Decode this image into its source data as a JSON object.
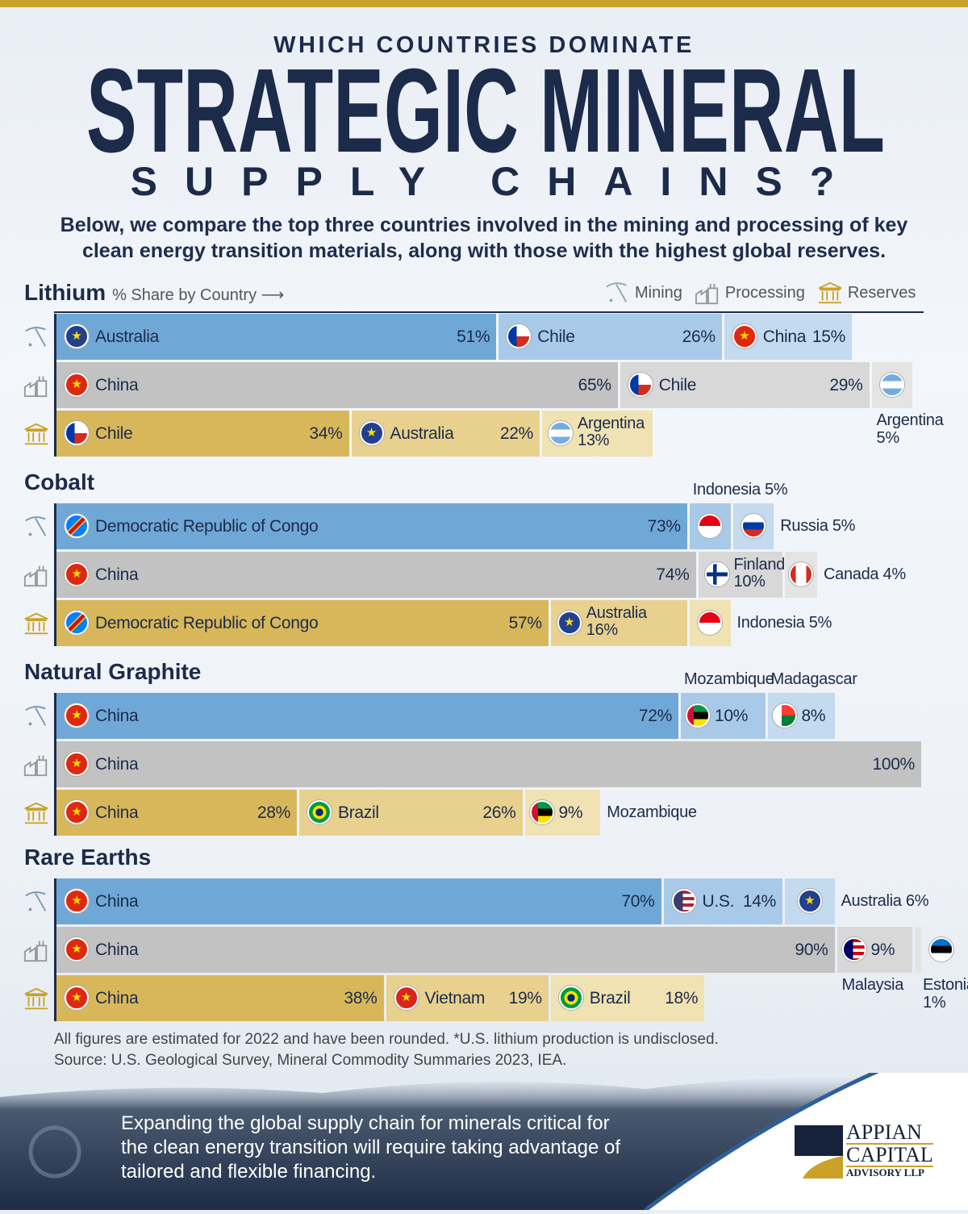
{
  "header": {
    "kicker": "WHICH COUNTRIES DOMINATE",
    "title": "STRATEGIC MINERAL",
    "title2": "SUPPLY CHAINS?",
    "intro": "Below, we compare the top three countries involved in the mining and processing of key clean energy transition materials, along with those with the highest global reserves."
  },
  "legend": {
    "subtitle": "% Share by Country",
    "mining": "Mining",
    "processing": "Processing",
    "reserves": "Reserves"
  },
  "colors": {
    "mining": [
      "#6fa8d7",
      "#a8cae8",
      "#c3daef"
    ],
    "processing": [
      "#c2c2c2",
      "#d8d8d8",
      "#e4e4e4"
    ],
    "reserves": [
      "#d8b75b",
      "#e8d18f",
      "#f0e2b2"
    ],
    "navy": "#1c2b4a",
    "gold": "#c9a227"
  },
  "chart_data": {
    "type": "bar",
    "orientation": "horizontal-stacked",
    "unit": "%",
    "xlim": [
      0,
      100
    ],
    "minerals": [
      {
        "name": "Lithium",
        "rows": [
          {
            "stage": "mining",
            "segments": [
              {
                "country": "Australia",
                "value": 51,
                "label": "51%",
                "mode": "full"
              },
              {
                "country": "Chile",
                "value": 26,
                "label": "26%",
                "mode": "full"
              },
              {
                "country": "China",
                "value": 15,
                "label": "15%",
                "mode": "full"
              }
            ]
          },
          {
            "stage": "processing",
            "segments": [
              {
                "country": "China",
                "value": 65,
                "label": "65%",
                "mode": "full"
              },
              {
                "country": "Chile",
                "value": 29,
                "label": "29%",
                "mode": "full"
              },
              {
                "country": "Argentina",
                "value": 5,
                "label": "5%",
                "mode": "flag",
                "external": "below"
              }
            ]
          },
          {
            "stage": "reserves",
            "segments": [
              {
                "country": "Chile",
                "value": 34,
                "label": "34%",
                "mode": "full"
              },
              {
                "country": "Australia",
                "value": 22,
                "label": "22%",
                "mode": "full"
              },
              {
                "country": "Argentina",
                "value": 13,
                "label": "13%",
                "mode": "stack"
              }
            ]
          }
        ]
      },
      {
        "name": "Cobalt",
        "rows": [
          {
            "stage": "mining",
            "segments": [
              {
                "country": "Democratic Republic of Congo",
                "value": 73,
                "label": "73%",
                "mode": "full"
              },
              {
                "country": "Indonesia",
                "value": 5,
                "label": "5%",
                "mode": "flag",
                "external": "above"
              },
              {
                "country": "Russia",
                "value": 5,
                "label": "5%",
                "mode": "flag",
                "external": "right"
              }
            ]
          },
          {
            "stage": "processing",
            "segments": [
              {
                "country": "China",
                "value": 74,
                "label": "74%",
                "mode": "full"
              },
              {
                "country": "Finland",
                "value": 10,
                "label": "10%",
                "mode": "stack"
              },
              {
                "country": "Canada",
                "value": 4,
                "label": "4%",
                "mode": "flag",
                "external": "right"
              }
            ]
          },
          {
            "stage": "reserves",
            "segments": [
              {
                "country": "Democratic Republic of Congo",
                "value": 57,
                "label": "57%",
                "mode": "full"
              },
              {
                "country": "Australia",
                "value": 16,
                "label": "16%",
                "mode": "stack"
              },
              {
                "country": "Indonesia",
                "value": 5,
                "label": "5%",
                "mode": "flag",
                "external": "right"
              }
            ]
          }
        ]
      },
      {
        "name": "Natural Graphite",
        "rows": [
          {
            "stage": "mining",
            "segments": [
              {
                "country": "China",
                "value": 72,
                "label": "72%",
                "mode": "full"
              },
              {
                "country": "Mozambique",
                "value": 10,
                "label": "10%",
                "mode": "flagpct",
                "external": "above"
              },
              {
                "country": "Madagascar",
                "value": 8,
                "label": "8%",
                "mode": "flagpct",
                "external": "above"
              }
            ]
          },
          {
            "stage": "processing",
            "segments": [
              {
                "country": "China",
                "value": 100,
                "label": "100%",
                "mode": "full"
              }
            ]
          },
          {
            "stage": "reserves",
            "segments": [
              {
                "country": "China",
                "value": 28,
                "label": "28%",
                "mode": "full"
              },
              {
                "country": "Brazil",
                "value": 26,
                "label": "26%",
                "mode": "full"
              },
              {
                "country": "Mozambique",
                "value": 9,
                "label": "9%",
                "mode": "flagpct",
                "external": "right"
              }
            ]
          }
        ]
      },
      {
        "name": "Rare Earths",
        "rows": [
          {
            "stage": "mining",
            "segments": [
              {
                "country": "China",
                "value": 70,
                "label": "70%",
                "mode": "full"
              },
              {
                "country": "U.S.",
                "value": 14,
                "label": "14%",
                "mode": "full"
              },
              {
                "country": "Australia",
                "value": 6,
                "label": "6%",
                "mode": "flag",
                "external": "right"
              }
            ]
          },
          {
            "stage": "processing",
            "segments": [
              {
                "country": "China",
                "value": 90,
                "label": "90%",
                "mode": "full"
              },
              {
                "country": "Malaysia",
                "value": 9,
                "label": "9%",
                "mode": "flagpct",
                "external": "below"
              },
              {
                "country": "Estonia",
                "value": 1,
                "label": "1%",
                "mode": "flag",
                "external": "below"
              }
            ]
          },
          {
            "stage": "reserves",
            "segments": [
              {
                "country": "China",
                "value": 38,
                "label": "38%",
                "mode": "full"
              },
              {
                "country": "Vietnam",
                "value": 19,
                "label": "19%",
                "mode": "full"
              },
              {
                "country": "Brazil",
                "value": 18,
                "label": "18%",
                "mode": "full"
              }
            ]
          }
        ]
      }
    ]
  },
  "footer": {
    "note": "All figures are estimated for 2022 and have been rounded. *U.S. lithium production is undisclosed.",
    "source": "Source: U.S. Geological Survey, Mineral Commodity Summaries 2023, IEA.",
    "closing": "Expanding the global supply chain for minerals critical for the clean energy transition will require taking advantage of tailored and flexible financing.",
    "logo": [
      "APPIAN",
      "CAPITAL",
      "ADVISORY LLP"
    ]
  }
}
